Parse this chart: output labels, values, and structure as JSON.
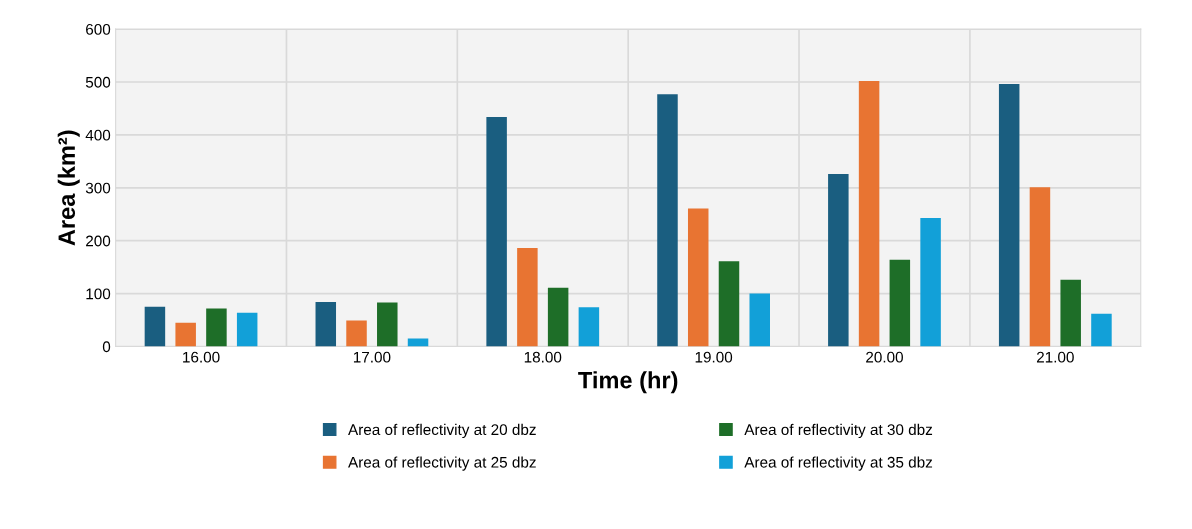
{
  "chart_data": {
    "type": "bar",
    "xlabel": "Time (hr)",
    "ylabel": "Area (km²)",
    "categories": [
      "16.00",
      "17.00",
      "18.00",
      "19.00",
      "20.00",
      "21.00"
    ],
    "series": [
      {
        "name": "Area of reflectivity at 20 dbz",
        "color": "#1a5e80",
        "values": [
          75,
          84,
          434,
          477,
          326,
          496
        ]
      },
      {
        "name": "Area of reflectivity at 25 dbz",
        "color": "#e87432",
        "values": [
          45,
          49,
          186,
          261,
          502,
          301
        ]
      },
      {
        "name": "Area of reflectivity at 30 dbz",
        "color": "#1e6e28",
        "values": [
          72,
          83,
          111,
          161,
          164,
          126
        ]
      },
      {
        "name": "Area of reflectivity at 35 dbz",
        "color": "#12a0d8",
        "values": [
          64,
          15,
          74,
          100,
          243,
          62
        ]
      }
    ],
    "ylim": [
      0,
      600
    ],
    "yticks": [
      0,
      100,
      200,
      300,
      400,
      500,
      600
    ],
    "grid": true,
    "legend": "bottom"
  }
}
